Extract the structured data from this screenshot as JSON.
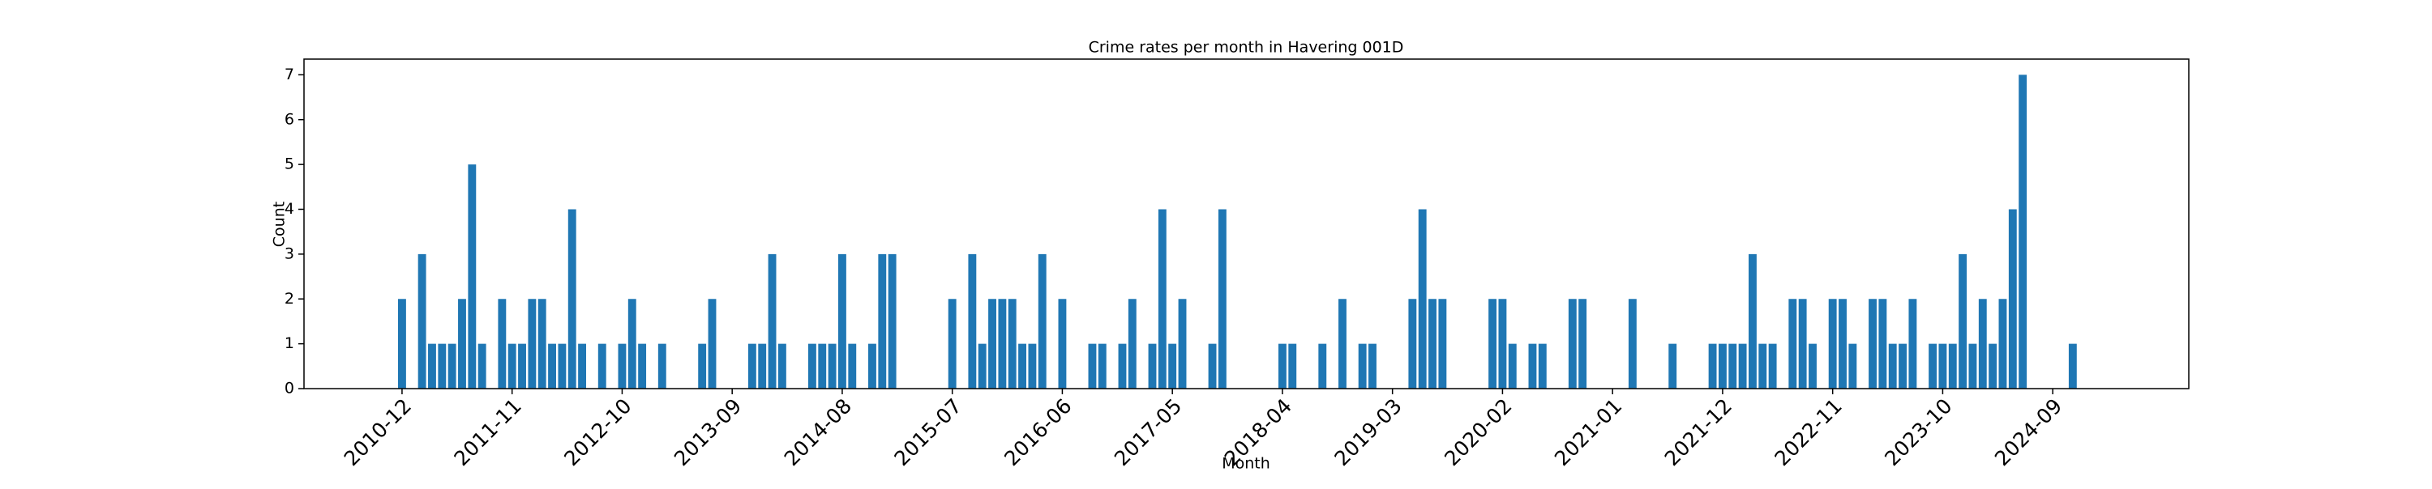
{
  "chart_data": {
    "type": "bar",
    "title": "Crime rates per month in Havering 001D",
    "xlabel": "Month",
    "ylabel": "Count",
    "color": "#1f77b4",
    "categories": [
      "2010-12",
      null,
      null,
      null,
      null,
      null,
      null,
      null,
      null,
      null,
      null,
      "2011-11",
      null,
      null,
      null,
      null,
      null,
      null,
      null,
      null,
      null,
      null,
      "2012-10",
      null,
      null,
      null,
      null,
      null,
      null,
      null,
      null,
      null,
      null,
      "2013-09",
      null,
      null,
      null,
      null,
      null,
      null,
      null,
      null,
      null,
      null,
      "2014-08",
      null,
      null,
      null,
      null,
      null,
      null,
      null,
      null,
      null,
      null,
      "2015-07",
      null,
      null,
      null,
      null,
      null,
      null,
      null,
      null,
      null,
      null,
      "2016-06",
      null,
      null,
      null,
      null,
      null,
      null,
      null,
      null,
      null,
      null,
      "2017-05",
      null,
      null,
      null,
      null,
      null,
      null,
      null,
      null,
      null,
      null,
      "2018-04",
      null,
      null,
      null,
      null,
      null,
      null,
      null,
      null,
      null,
      null,
      "2019-03",
      null,
      null,
      null,
      null,
      null,
      null,
      null,
      null,
      null,
      null,
      "2020-02",
      null,
      null,
      null,
      null,
      null,
      null,
      null,
      null,
      null,
      null,
      "2021-01",
      null,
      null,
      null,
      null,
      null,
      null,
      null,
      null,
      null,
      null,
      "2021-12",
      null,
      null,
      null,
      null,
      null,
      null,
      null,
      null,
      null,
      null,
      "2022-11",
      null,
      null,
      null,
      null,
      null,
      null,
      null,
      null,
      null,
      null,
      "2023-10",
      null,
      null,
      null,
      null,
      null,
      null,
      null,
      null,
      null,
      null,
      "2024-09",
      null,
      null
    ],
    "values": [
      2,
      0,
      3,
      1,
      1,
      1,
      2,
      5,
      1,
      0,
      2,
      1,
      1,
      2,
      2,
      1,
      1,
      4,
      1,
      0,
      1,
      0,
      1,
      2,
      1,
      0,
      1,
      0,
      0,
      0,
      1,
      2,
      0,
      0,
      0,
      1,
      1,
      3,
      1,
      0,
      0,
      1,
      1,
      1,
      3,
      1,
      0,
      1,
      3,
      3,
      0,
      0,
      0,
      0,
      0,
      2,
      0,
      3,
      1,
      2,
      2,
      2,
      1,
      1,
      3,
      0,
      2,
      0,
      0,
      1,
      1,
      0,
      1,
      2,
      0,
      1,
      4,
      1,
      2,
      0,
      0,
      1,
      4,
      0,
      0,
      0,
      0,
      0,
      1,
      1,
      0,
      0,
      1,
      0,
      2,
      0,
      1,
      1,
      0,
      0,
      0,
      2,
      4,
      2,
      2,
      0,
      0,
      0,
      0,
      2,
      2,
      1,
      0,
      1,
      1,
      0,
      0,
      2,
      2,
      0,
      0,
      0,
      0,
      2,
      0,
      0,
      0,
      1,
      0,
      0,
      0,
      1,
      1,
      1,
      1,
      3,
      1,
      1,
      0,
      2,
      2,
      1,
      0,
      2,
      2,
      1,
      0,
      2,
      2,
      1,
      1,
      2,
      0,
      1,
      1,
      1,
      3,
      1,
      2,
      1,
      2,
      4,
      7,
      0,
      0,
      0,
      0,
      1
    ],
    "ylim": [
      0,
      7.35
    ],
    "yticks": [
      0,
      1,
      2,
      3,
      4,
      5,
      6,
      7
    ]
  }
}
